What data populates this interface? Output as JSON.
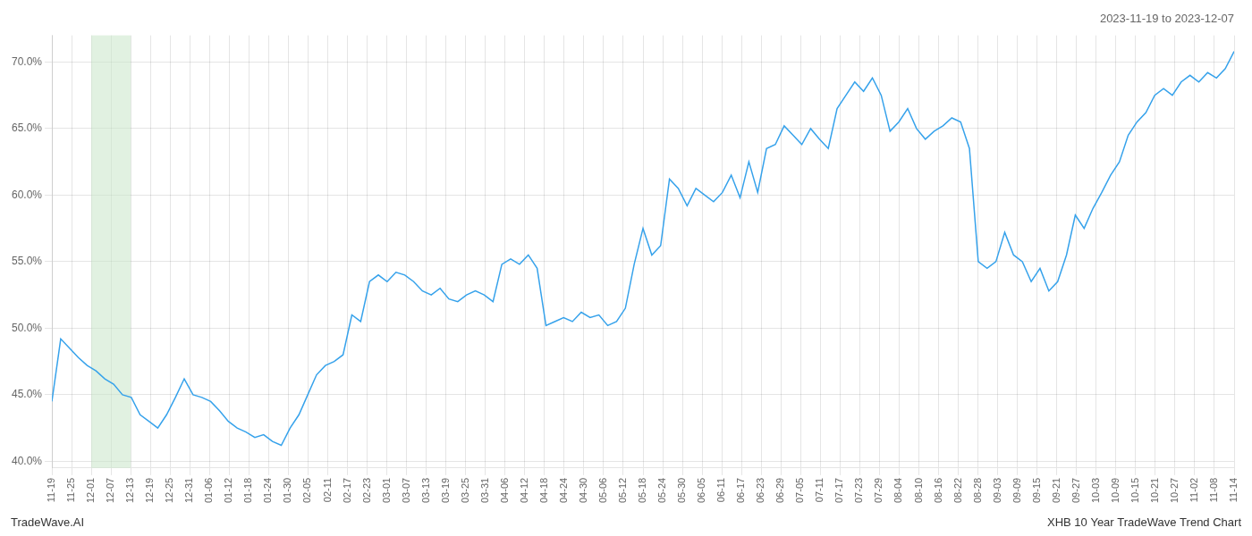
{
  "chart_data": {
    "type": "line",
    "title": "2023-11-19 to 2023-12-07",
    "annotations": [
      "TradeWave.AI",
      "XHB 10 Year TradeWave Trend Chart"
    ],
    "x": [
      0,
      0.4478,
      0.8955,
      1.3433,
      1.791,
      2.2388,
      2.6866,
      3.1343,
      3.5821,
      4.0299,
      4.4776,
      4.9254,
      5.3731,
      5.8209,
      6.2687,
      6.7164,
      7.1642,
      7.6119,
      8.0597,
      8.5075,
      8.9552,
      9.403,
      9.8507,
      10.2985,
      10.7463,
      11.194,
      11.6418,
      12.0896,
      12.5373,
      12.9851,
      13.4328,
      13.8806,
      14.3284,
      14.7761,
      15.2239,
      15.6716,
      16.1194,
      16.5672,
      17.0149,
      17.4627,
      17.9104,
      18.3582,
      18.806,
      19.2537,
      19.7015,
      20.1493,
      20.597,
      21.0448,
      21.4925,
      21.9403,
      22.3881,
      22.8358,
      23.2836,
      23.7313,
      24.1791,
      24.6269,
      25.0746,
      25.5224,
      25.9701,
      26.4179,
      26.8657,
      27.3134,
      27.7612,
      28.209,
      28.6567,
      29.1045,
      29.5522,
      30,
      30.4478,
      30.8955,
      31.3433,
      31.791,
      32.2388,
      32.6866,
      33.1343,
      33.5821,
      34.0299,
      34.4776,
      34.9254,
      35.3731,
      35.8209,
      36.2687,
      36.7164,
      37.1642,
      37.6119,
      38.0597,
      38.5075,
      38.9552,
      39.403,
      39.8507,
      40.2985,
      40.7463,
      41.194,
      41.6418,
      42.0896,
      42.5373,
      42.9851,
      43.4328,
      43.8806,
      44.3284,
      44.7761,
      45.2239,
      45.6716,
      46.1194,
      46.5672,
      47.0149,
      47.4627,
      47.9104,
      48.3582,
      48.806,
      49.2537,
      49.7015,
      50.1493,
      50.597,
      51.0448,
      51.4925,
      51.9403,
      52.3881,
      52.8358,
      53.2836,
      53.7313,
      54.1791,
      54.6269,
      55.0746,
      55.5224,
      55.9701,
      56.4179,
      56.8657,
      57.3134,
      57.7612,
      58.209,
      58.6567,
      59.1045,
      59.5522,
      60
    ],
    "values": [
      44.5,
      49.2,
      48.5,
      47.8,
      47.2,
      46.8,
      46.2,
      45.8,
      45.0,
      44.8,
      43.5,
      43.0,
      42.5,
      43.5,
      44.8,
      46.2,
      45.0,
      44.8,
      44.5,
      43.8,
      43.0,
      42.5,
      42.2,
      41.8,
      42.0,
      41.5,
      41.2,
      42.5,
      43.5,
      45.0,
      46.5,
      47.2,
      47.5,
      48.0,
      51.0,
      50.5,
      53.5,
      54.0,
      53.5,
      54.2,
      54.0,
      53.5,
      52.8,
      52.5,
      53.0,
      52.2,
      52.0,
      52.5,
      52.8,
      52.5,
      52.0,
      54.8,
      55.2,
      54.8,
      55.5,
      54.5,
      50.2,
      50.5,
      50.8,
      50.5,
      51.2,
      50.8,
      51.0,
      50.2,
      50.5,
      51.5,
      54.8,
      57.5,
      55.5,
      56.2,
      61.2,
      60.5,
      59.2,
      60.5,
      60.0,
      59.5,
      60.2,
      61.5,
      59.8,
      62.5,
      60.2,
      63.5,
      63.8,
      65.2,
      64.5,
      63.8,
      65.0,
      64.2,
      63.5,
      66.5,
      67.5,
      68.5,
      67.8,
      68.8,
      67.5,
      64.8,
      65.5,
      66.5,
      65.0,
      64.2,
      64.8,
      65.2,
      65.8,
      65.5,
      63.5,
      55.0,
      54.5,
      55.0,
      57.2,
      55.5,
      55.0,
      53.5,
      54.5,
      52.8,
      53.5,
      55.5,
      58.5,
      57.5,
      59.0,
      60.2,
      61.5,
      62.5,
      64.5,
      65.5,
      66.2,
      67.5,
      68.0,
      67.5,
      68.5,
      69.0,
      68.5,
      69.2,
      68.8,
      69.5,
      70.8
    ],
    "xlim": [
      0,
      60
    ],
    "xticks": [
      {
        "value": 0,
        "label": "11-19"
      },
      {
        "value": 1,
        "label": "11-25"
      },
      {
        "value": 2,
        "label": "12-01"
      },
      {
        "value": 3,
        "label": "12-07"
      },
      {
        "value": 4,
        "label": "12-13"
      },
      {
        "value": 5,
        "label": "12-19"
      },
      {
        "value": 6,
        "label": "12-25"
      },
      {
        "value": 7,
        "label": "12-31"
      },
      {
        "value": 8,
        "label": "01-06"
      },
      {
        "value": 9,
        "label": "01-12"
      },
      {
        "value": 10,
        "label": "01-18"
      },
      {
        "value": 11,
        "label": "01-24"
      },
      {
        "value": 12,
        "label": "01-30"
      },
      {
        "value": 13,
        "label": "02-05"
      },
      {
        "value": 14,
        "label": "02-11"
      },
      {
        "value": 15,
        "label": "02-17"
      },
      {
        "value": 16,
        "label": "02-23"
      },
      {
        "value": 17,
        "label": "03-01"
      },
      {
        "value": 18,
        "label": "03-07"
      },
      {
        "value": 19,
        "label": "03-13"
      },
      {
        "value": 20,
        "label": "03-19"
      },
      {
        "value": 21,
        "label": "03-25"
      },
      {
        "value": 22,
        "label": "03-31"
      },
      {
        "value": 23,
        "label": "04-06"
      },
      {
        "value": 24,
        "label": "04-12"
      },
      {
        "value": 25,
        "label": "04-18"
      },
      {
        "value": 26,
        "label": "04-24"
      },
      {
        "value": 27,
        "label": "04-30"
      },
      {
        "value": 28,
        "label": "05-06"
      },
      {
        "value": 29,
        "label": "05-12"
      },
      {
        "value": 30,
        "label": "05-18"
      },
      {
        "value": 31,
        "label": "05-24"
      },
      {
        "value": 32,
        "label": "05-30"
      },
      {
        "value": 33,
        "label": "06-05"
      },
      {
        "value": 34,
        "label": "06-11"
      },
      {
        "value": 35,
        "label": "06-17"
      },
      {
        "value": 36,
        "label": "06-23"
      },
      {
        "value": 37,
        "label": "06-29"
      },
      {
        "value": 38,
        "label": "07-05"
      },
      {
        "value": 39,
        "label": "07-11"
      },
      {
        "value": 40,
        "label": "07-17"
      },
      {
        "value": 41,
        "label": "07-23"
      },
      {
        "value": 42,
        "label": "07-29"
      },
      {
        "value": 43,
        "label": "08-04"
      },
      {
        "value": 44,
        "label": "08-10"
      },
      {
        "value": 45,
        "label": "08-16"
      },
      {
        "value": 46,
        "label": "08-22"
      },
      {
        "value": 47,
        "label": "08-28"
      },
      {
        "value": 48,
        "label": "09-03"
      },
      {
        "value": 49,
        "label": "09-09"
      },
      {
        "value": 50,
        "label": "09-15"
      },
      {
        "value": 51,
        "label": "09-21"
      },
      {
        "value": 52,
        "label": "09-27"
      },
      {
        "value": 53,
        "label": "10-03"
      },
      {
        "value": 54,
        "label": "10-09"
      },
      {
        "value": 55,
        "label": "10-15"
      },
      {
        "value": 56,
        "label": "10-21"
      },
      {
        "value": 57,
        "label": "10-27"
      },
      {
        "value": 58,
        "label": "11-02"
      },
      {
        "value": 59,
        "label": "11-08"
      },
      {
        "value": 60,
        "label": "11-14"
      }
    ],
    "ylim": [
      39.5,
      72.0
    ],
    "yticks": [
      {
        "value": 40.0,
        "label": "40.0%"
      },
      {
        "value": 45.0,
        "label": "45.0%"
      },
      {
        "value": 50.0,
        "label": "50.0%"
      },
      {
        "value": 55.0,
        "label": "55.0%"
      },
      {
        "value": 60.0,
        "label": "60.0%"
      },
      {
        "value": 65.0,
        "label": "65.0%"
      },
      {
        "value": 70.0,
        "label": "70.0%"
      }
    ],
    "grid": true,
    "highlight": {
      "start": 2,
      "end": 4,
      "color": "#c8e6c9"
    }
  }
}
